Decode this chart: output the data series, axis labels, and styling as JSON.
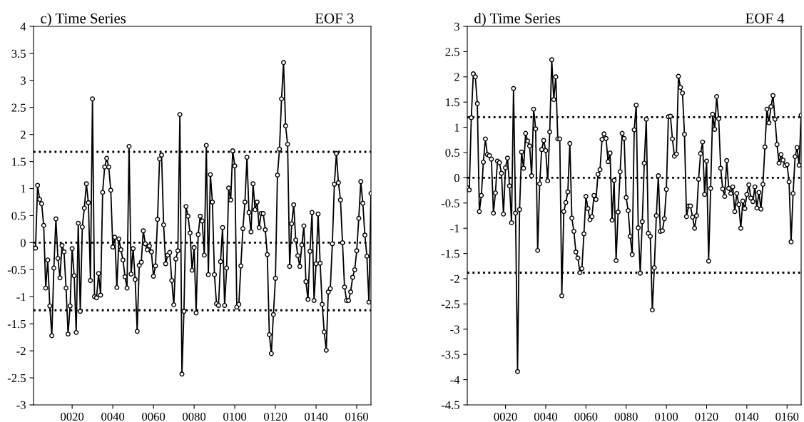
{
  "chart_data": [
    {
      "type": "line",
      "title": "c) Time Series",
      "subtitle": "EOF 3",
      "x": [
        1,
        2,
        3,
        4,
        5,
        6,
        7,
        8,
        9,
        10,
        11,
        12,
        13,
        14,
        15,
        16,
        17,
        18,
        19,
        20,
        21,
        22,
        23,
        24,
        25,
        26,
        27,
        28,
        29,
        30,
        31,
        32,
        33,
        34,
        35,
        36,
        37,
        38,
        39,
        40,
        41,
        42,
        43,
        44,
        45,
        46,
        47,
        48,
        49,
        50,
        51,
        52,
        53,
        54,
        55,
        56,
        57,
        58,
        59,
        60,
        61,
        62,
        63,
        64,
        65,
        66,
        67,
        68,
        69,
        70,
        71,
        72,
        73,
        74,
        75,
        76,
        77,
        78,
        79,
        80,
        81,
        82,
        83,
        84,
        85,
        86,
        87,
        88,
        89,
        90,
        91,
        92,
        93,
        94,
        95,
        96,
        97,
        98,
        99,
        100,
        101,
        102,
        103,
        104,
        105,
        106,
        107,
        108,
        109,
        110,
        111,
        112,
        113,
        114,
        115,
        116,
        117,
        118,
        119,
        120,
        121,
        122,
        123,
        124,
        125,
        126,
        127,
        128,
        129,
        130,
        131,
        132,
        133,
        134,
        135,
        136,
        137,
        138,
        139,
        140,
        141,
        142,
        143,
        144,
        145,
        146,
        147,
        148,
        149,
        150,
        151,
        152,
        153,
        154,
        155,
        156,
        157,
        158,
        159,
        160,
        161,
        162,
        163,
        164,
        165,
        166,
        167
      ],
      "series": [
        {
          "color": "#000000",
          "values": [
            -0.1,
            -0.1,
            1.06,
            0.8,
            0.72,
            0.32,
            -0.84,
            -0.32,
            -1.17,
            -1.72,
            -0.47,
            0.44,
            -0.29,
            -0.65,
            -0.05,
            -0.17,
            -0.84,
            -1.69,
            -1.17,
            -0.11,
            -0.61,
            -1.66,
            0.36,
            -1.27,
            0.29,
            0.64,
            1.09,
            0.74,
            -0.7,
            2.66,
            -1.0,
            -1.02,
            -0.57,
            -0.97,
            0.93,
            1.4,
            1.56,
            1.4,
            0.97,
            -0.08,
            0.1,
            -0.83,
            0.07,
            -0.13,
            -0.32,
            -0.63,
            -0.84,
            1.78,
            -0.58,
            -0.11,
            -0.68,
            -1.64,
            -0.42,
            -0.36,
            0.22,
            -0.02,
            -0.13,
            -0.06,
            -0.17,
            -0.62,
            -0.43,
            0.43,
            1.55,
            1.62,
            0.33,
            -0.39,
            -0.23,
            -0.18,
            -0.7,
            -1.15,
            -0.3,
            -0.15,
            2.37,
            -2.43,
            -1.27,
            0.67,
            0.49,
            0.18,
            -0.51,
            -0.09,
            -1.3,
            0.15,
            0.49,
            0.4,
            -0.23,
            1.8,
            -0.59,
            1.26,
            0.75,
            -0.59,
            -1.13,
            -1.16,
            -0.35,
            0.28,
            -1.16,
            -0.47,
            1.01,
            0.79,
            1.7,
            1.42,
            -1.19,
            -1.14,
            -0.43,
            0.26,
            0.75,
            1.58,
            0.56,
            0.2,
            1.09,
            0.61,
            0.75,
            0.28,
            0.54,
            0.54,
            0.24,
            -0.22,
            -1.7,
            -2.05,
            -1.33,
            -0.66,
            1.25,
            1.73,
            2.66,
            3.33,
            2.16,
            1.82,
            -0.44,
            0.35,
            0.7,
            0.05,
            -0.24,
            -0.44,
            -0.04,
            0.31,
            -0.72,
            -1.05,
            -0.16,
            0.56,
            -1.07,
            -0.39,
            0.53,
            -0.38,
            -1.14,
            -1.65,
            -1.99,
            -0.91,
            -0.85,
            -0.02,
            1.08,
            1.65,
            1.11,
            0.79,
            0,
            -0.82,
            -1.07,
            -1.07,
            -0.91,
            -0.64,
            -0.5,
            -0.15,
            0.45,
            1.13,
            0.73,
            0.14,
            -0.25,
            -1.1,
            0.91
          ]
        }
      ],
      "xlim": [
        1,
        167
      ],
      "ylim": [
        -3,
        4
      ],
      "xticks": [
        {
          "value": 20,
          "label": "0020"
        },
        {
          "value": 40,
          "label": "0040"
        },
        {
          "value": 60,
          "label": "0060"
        },
        {
          "value": 80,
          "label": "0080"
        },
        {
          "value": 100,
          "label": "0100"
        },
        {
          "value": 120,
          "label": "0120"
        },
        {
          "value": 140,
          "label": "0140"
        },
        {
          "value": 160,
          "label": "0160"
        }
      ],
      "yticks": [
        -3,
        -2.5,
        -2,
        -1.5,
        -1,
        -0.5,
        0,
        0.5,
        1,
        1.5,
        2,
        2.5,
        3,
        3.5,
        4
      ],
      "ref_lines": [
        {
          "axis": "y",
          "value": 1.68,
          "color": "#000000",
          "line_style": "dotted"
        },
        {
          "axis": "y",
          "value": 0,
          "color": "#000000",
          "line_style": "dotted"
        },
        {
          "axis": "y",
          "value": -1.25,
          "color": "#000000",
          "line_style": "dotted"
        }
      ],
      "marker": "circle",
      "line_style": "solid",
      "grid": false,
      "legend": false
    },
    {
      "type": "line",
      "title": "d) Time Series",
      "subtitle": "EOF 4",
      "x": [
        1,
        2,
        3,
        4,
        5,
        6,
        7,
        8,
        9,
        10,
        11,
        12,
        13,
        14,
        15,
        16,
        17,
        18,
        19,
        20,
        21,
        22,
        23,
        24,
        25,
        26,
        27,
        28,
        29,
        30,
        31,
        32,
        33,
        34,
        35,
        36,
        37,
        38,
        39,
        40,
        41,
        42,
        43,
        44,
        45,
        46,
        47,
        48,
        49,
        50,
        51,
        52,
        53,
        54,
        55,
        56,
        57,
        58,
        59,
        60,
        61,
        62,
        63,
        64,
        65,
        66,
        67,
        68,
        69,
        70,
        71,
        72,
        73,
        74,
        75,
        76,
        77,
        78,
        79,
        80,
        81,
        82,
        83,
        84,
        85,
        86,
        87,
        88,
        89,
        90,
        91,
        92,
        93,
        94,
        95,
        96,
        97,
        98,
        99,
        100,
        101,
        102,
        103,
        104,
        105,
        106,
        107,
        108,
        109,
        110,
        111,
        112,
        113,
        114,
        115,
        116,
        117,
        118,
        119,
        120,
        121,
        122,
        123,
        124,
        125,
        126,
        127,
        128,
        129,
        130,
        131,
        132,
        133,
        134,
        135,
        136,
        137,
        138,
        139,
        140,
        141,
        142,
        143,
        144,
        145,
        146,
        147,
        148,
        149,
        150,
        151,
        152,
        153,
        154,
        155,
        156,
        157,
        158,
        159,
        160,
        161,
        162,
        163,
        164,
        165,
        166,
        167
      ],
      "series": [
        {
          "color": "#000000",
          "values": [
            -0.2,
            -0.24,
            1.19,
            2.06,
            2.0,
            1.47,
            -0.67,
            -0.35,
            0.31,
            0.77,
            0.46,
            0.44,
            0.37,
            -0.7,
            -0.3,
            0.33,
            0.3,
            0.09,
            -0.72,
            0.2,
            0.39,
            -0.16,
            -0.89,
            1.77,
            -0.7,
            -3.84,
            -0.63,
            0.51,
            0.19,
            0.88,
            0.73,
            0.63,
            0.04,
            1.36,
            0.97,
            -1.44,
            -0.12,
            0.56,
            0.74,
            0.54,
            -0.06,
            0.91,
            2.34,
            1.55,
            2.0,
            0.77,
            0.77,
            -2.34,
            -0.67,
            -0.49,
            -0.28,
            0.68,
            -0.8,
            -1.06,
            -1.47,
            -1.59,
            -1.88,
            -1.8,
            -1.11,
            -0.37,
            -0.61,
            -0.83,
            -0.77,
            -0.35,
            -0.43,
            0.07,
            0.16,
            0.76,
            0.87,
            0.78,
            0.32,
            0.49,
            -0.84,
            -0.05,
            -1.64,
            -0.68,
            0.12,
            0.88,
            0.78,
            -0.39,
            -0.65,
            -1.16,
            -1.52,
            0.95,
            1.44,
            -0.99,
            -1.89,
            -0.87,
            0.29,
            1.16,
            -1.1,
            -1.16,
            -2.62,
            -1.78,
            -0.75,
            0.04,
            -1.06,
            -1.05,
            -0.81,
            -0.23,
            1.21,
            1.22,
            0.77,
            0.43,
            0.47,
            2.01,
            1.79,
            1.68,
            0.86,
            -0.77,
            -0.56,
            -0.56,
            -0.78,
            -1.0,
            -0.75,
            -0.03,
            0.48,
            0.71,
            -0.33,
            0.33,
            -1.65,
            -0.21,
            1.26,
            0.96,
            1.61,
            1.17,
            0.19,
            -0.22,
            -0.37,
            0.34,
            -0.21,
            -0.31,
            -0.18,
            -0.67,
            -0.31,
            -0.53,
            -1.0,
            -0.46,
            -0.61,
            -0.33,
            -0.14,
            -0.4,
            -0.47,
            -0.18,
            -0.6,
            -0.29,
            -0.62,
            -0.13,
            0.61,
            1.36,
            1.09,
            1.41,
            1.63,
            1.16,
            0.66,
            0.29,
            0.46,
            0.35,
            0.24,
            0.26,
            -0.08,
            -1.27,
            -0.31,
            0.42,
            0.6,
            0.25,
            1.24
          ]
        }
      ],
      "xlim": [
        1,
        167
      ],
      "ylim": [
        -4.5,
        3
      ],
      "xticks": [
        {
          "value": 20,
          "label": "0020"
        },
        {
          "value": 40,
          "label": "0040"
        },
        {
          "value": 60,
          "label": "0060"
        },
        {
          "value": 80,
          "label": "0080"
        },
        {
          "value": 100,
          "label": "0100"
        },
        {
          "value": 120,
          "label": "0120"
        },
        {
          "value": 140,
          "label": "0140"
        },
        {
          "value": 160,
          "label": "0160"
        }
      ],
      "yticks": [
        -4.5,
        -4,
        -3.5,
        -3,
        -2.5,
        -2,
        -1.5,
        -1,
        -0.5,
        0,
        0.5,
        1,
        1.5,
        2,
        2.5,
        3
      ],
      "ref_lines": [
        {
          "axis": "y",
          "value": 1.2,
          "color": "#000000",
          "line_style": "dotted"
        },
        {
          "axis": "y",
          "value": 0,
          "color": "#000000",
          "line_style": "dotted"
        },
        {
          "axis": "y",
          "value": -1.88,
          "color": "#000000",
          "line_style": "dotted"
        }
      ],
      "marker": "circle",
      "line_style": "solid",
      "grid": false,
      "legend": false
    }
  ]
}
